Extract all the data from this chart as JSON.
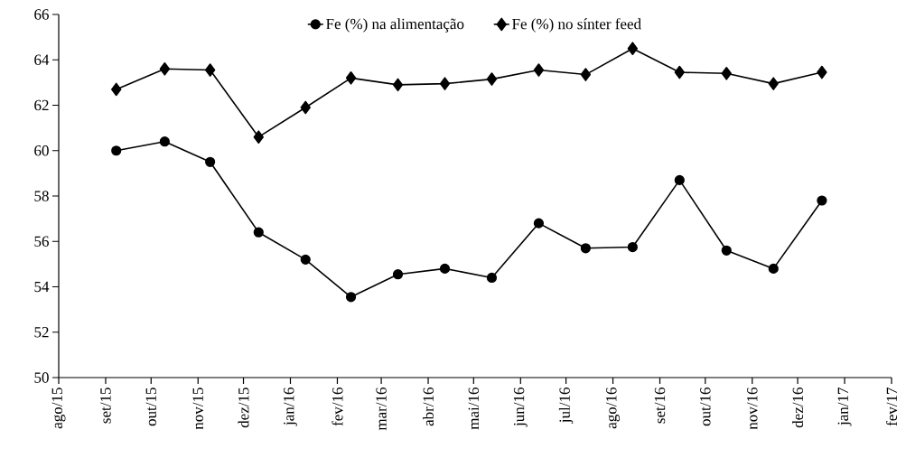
{
  "chart_data": {
    "type": "line",
    "x": [
      "2015-09-08",
      "2015-10-10",
      "2015-11-09",
      "2015-12-11",
      "2016-01-11",
      "2016-02-10",
      "2016-03-12",
      "2016-04-12",
      "2016-05-13",
      "2016-06-13",
      "2016-07-14",
      "2016-08-14",
      "2016-09-14",
      "2016-10-15",
      "2016-11-15",
      "2016-12-17"
    ],
    "series": [
      {
        "name": "Fe (%) na alimentação",
        "color": "#000000",
        "marker": "circle",
        "values": [
          60.0,
          60.4,
          59.5,
          56.4,
          55.2,
          53.55,
          54.55,
          54.8,
          54.4,
          56.8,
          55.7,
          55.75,
          58.7,
          55.6,
          54.8,
          57.8
        ]
      },
      {
        "name": "Fe (%) no sínter feed",
        "color": "#000000",
        "marker": "diamond",
        "values": [
          62.7,
          63.6,
          63.55,
          60.6,
          61.9,
          63.2,
          62.9,
          62.95,
          63.15,
          63.55,
          63.35,
          64.5,
          63.45,
          63.4,
          62.95,
          63.45
        ]
      }
    ],
    "xlim": [
      "2015-08-01",
      "2017-02-01"
    ],
    "xticks": [
      {
        "value": "2015-08-01",
        "label": "ago/15"
      },
      {
        "value": "2015-09-01",
        "label": "set/15"
      },
      {
        "value": "2015-10-01",
        "label": "out/15"
      },
      {
        "value": "2015-11-01",
        "label": "nov/15"
      },
      {
        "value": "2015-12-01",
        "label": "dez/15"
      },
      {
        "value": "2016-01-01",
        "label": "jan/16"
      },
      {
        "value": "2016-02-01",
        "label": "fev/16"
      },
      {
        "value": "2016-03-01",
        "label": "mar/16"
      },
      {
        "value": "2016-04-01",
        "label": "abr/16"
      },
      {
        "value": "2016-05-01",
        "label": "mai/16"
      },
      {
        "value": "2016-06-01",
        "label": "jun/16"
      },
      {
        "value": "2016-07-01",
        "label": "jul/16"
      },
      {
        "value": "2016-08-01",
        "label": "ago/16"
      },
      {
        "value": "2016-09-01",
        "label": "set/16"
      },
      {
        "value": "2016-10-01",
        "label": "out/16"
      },
      {
        "value": "2016-11-01",
        "label": "nov/16"
      },
      {
        "value": "2016-12-01",
        "label": "dez/16"
      },
      {
        "value": "2017-01-01",
        "label": "jan/17"
      },
      {
        "value": "2017-02-01",
        "label": "fev/17"
      }
    ],
    "ylim": [
      50,
      66
    ],
    "yticks": [
      50,
      52,
      54,
      56,
      58,
      60,
      62,
      64,
      66
    ],
    "grid": false,
    "legend": "top",
    "line_style": "solid"
  }
}
